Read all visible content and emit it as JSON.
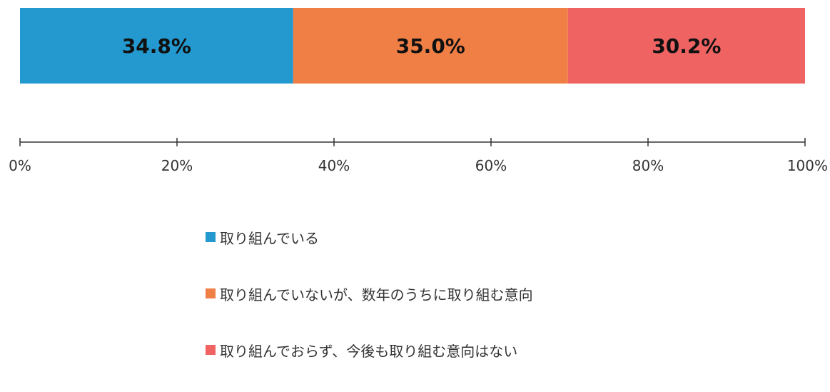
{
  "chart_data": {
    "type": "bar",
    "orientation": "horizontal-stacked",
    "series": [
      {
        "name": "取り組んでいる",
        "value": 34.8,
        "label": "34.8%",
        "color": "#2399cf"
      },
      {
        "name": "取り組んでいないが、数年のうちに取り組む意向",
        "value": 35.0,
        "label": "35.0%",
        "color": "#f07f45"
      },
      {
        "name": "取り組んでおらず、今後も取り組む意向はない",
        "value": 30.2,
        "label": "30.2%",
        "color": "#ef6363"
      }
    ],
    "x_ticks": [
      "0%",
      "20%",
      "40%",
      "60%",
      "80%",
      "100%"
    ],
    "xlim": [
      0,
      100
    ],
    "legend_position": "bottom",
    "grid": false
  }
}
